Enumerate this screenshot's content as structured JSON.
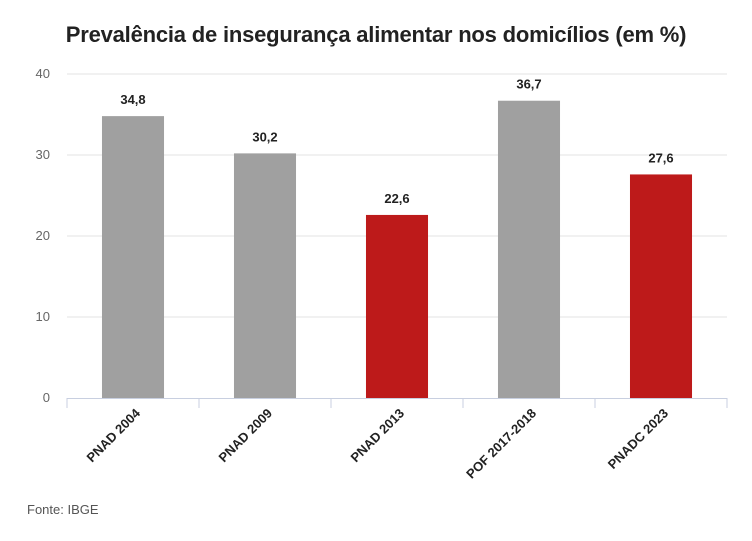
{
  "chart_data": {
    "type": "bar",
    "title": "Prevalência de insegurança alimentar nos domicílios (em %)",
    "xlabel": "",
    "ylabel": "",
    "categories": [
      "PNAD 2004",
      "PNAD 2009",
      "PNAD 2013",
      "POF 2017-2018",
      "PNADC 2023"
    ],
    "values": [
      34.8,
      30.2,
      22.6,
      36.7,
      27.6
    ],
    "value_labels": [
      "34,8",
      "30,2",
      "22,6",
      "36,7",
      "27,6"
    ],
    "bar_colors": [
      "#a0a0a0",
      "#a0a0a0",
      "#bd1a1a",
      "#a0a0a0",
      "#bd1a1a"
    ],
    "ylim": [
      0,
      40
    ],
    "yticks": [
      0,
      10,
      20,
      30,
      40
    ],
    "grid": true,
    "legend": "none"
  },
  "source": "Fonte: IBGE"
}
